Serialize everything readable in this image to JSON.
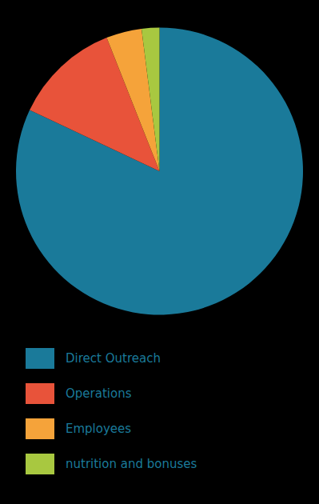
{
  "chart_data": {
    "type": "pie",
    "categories": [
      "Direct Outreach",
      "Operations",
      "Employees",
      "nutrition and bonuses"
    ],
    "values": [
      82,
      12,
      4,
      2
    ],
    "colors": [
      "#1a7a9a",
      "#e8533a",
      "#f5a33a",
      "#a8c840"
    ],
    "legend": "bottom"
  }
}
